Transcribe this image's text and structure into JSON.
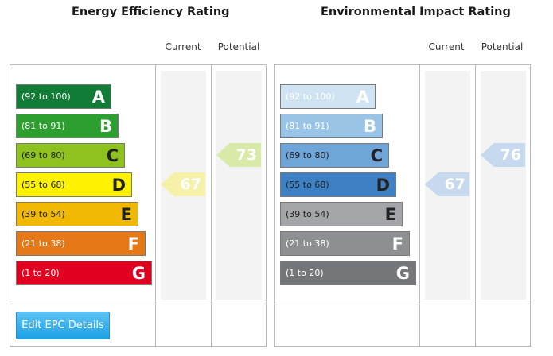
{
  "columns": {
    "current": "Current",
    "potential": "Potential"
  },
  "edit_button": "Edit EPC Details",
  "colors": {
    "energy": [
      "#117c36",
      "#2c9f30",
      "#8dc21f",
      "#fff200",
      "#f0b800",
      "#e77817",
      "#e1001f"
    ],
    "energy_text": [
      "#ffffff",
      "#ffffff",
      "#222222",
      "#222222",
      "#222222",
      "#ffffff",
      "#ffffff"
    ],
    "environmental": [
      "#cfe3f3",
      "#9ac4e6",
      "#70a5d9",
      "#3e80c4",
      "#a4a5a8",
      "#8e8f92",
      "#75767a"
    ],
    "environmental_text": [
      "#ffffff",
      "#ffffff",
      "#222222",
      "#222222",
      "#222222",
      "#ffffff",
      "#ffffff"
    ],
    "energy_current_arrow": "#f5f1a8",
    "energy_potential_arrow": "#d8e9a8",
    "environmental_arrow": "#c6d9ee"
  },
  "chart_data": [
    {
      "type": "table",
      "title": "Energy Efficiency Rating",
      "bands": [
        {
          "range": "(92 to 100)",
          "letter": "A"
        },
        {
          "range": "(81 to 91)",
          "letter": "B"
        },
        {
          "range": "(69 to 80)",
          "letter": "C"
        },
        {
          "range": "(55 to 68)",
          "letter": "D"
        },
        {
          "range": "(39 to 54)",
          "letter": "E"
        },
        {
          "range": "(21 to 38)",
          "letter": "F"
        },
        {
          "range": "(1 to 20)",
          "letter": "G"
        }
      ],
      "current": 67,
      "potential": 73
    },
    {
      "type": "table",
      "title": "Environmental Impact Rating",
      "bands": [
        {
          "range": "(92 to 100)",
          "letter": "A"
        },
        {
          "range": "(81 to 91)",
          "letter": "B"
        },
        {
          "range": "(69 to 80)",
          "letter": "C"
        },
        {
          "range": "(55 to 68)",
          "letter": "D"
        },
        {
          "range": "(39 to 54)",
          "letter": "E"
        },
        {
          "range": "(21 to 38)",
          "letter": "F"
        },
        {
          "range": "(1 to 20)",
          "letter": "G"
        }
      ],
      "current": 67,
      "potential": 76
    }
  ]
}
